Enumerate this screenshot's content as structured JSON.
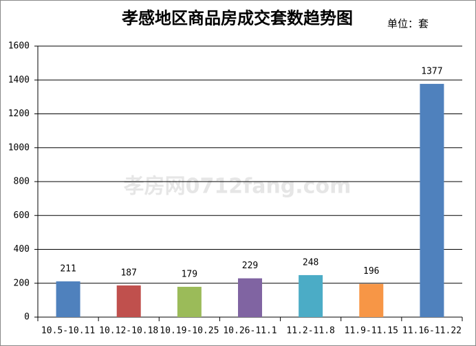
{
  "chart_data": {
    "type": "bar",
    "title": "孝感地区商品房成交套数趋势图",
    "subtitle": "单位：套",
    "watermark": "孝房网0712fang.com",
    "categories": [
      "10.5-10.11",
      "10.12-10.18",
      "10.19-10.25",
      "10.26-11.1",
      "11.2-11.8",
      "11.9-11.15",
      "11.16-11.22"
    ],
    "values": [
      211,
      187,
      179,
      229,
      248,
      196,
      1377
    ],
    "colors": [
      "#4f81bd",
      "#c0504d",
      "#9bbb59",
      "#8064a2",
      "#4bacc6",
      "#f79646",
      "#4f81bd"
    ],
    "ylim": [
      0,
      1600
    ],
    "yticks": [
      0,
      200,
      400,
      600,
      800,
      1000,
      1200,
      1400,
      1600
    ],
    "grid": true
  }
}
